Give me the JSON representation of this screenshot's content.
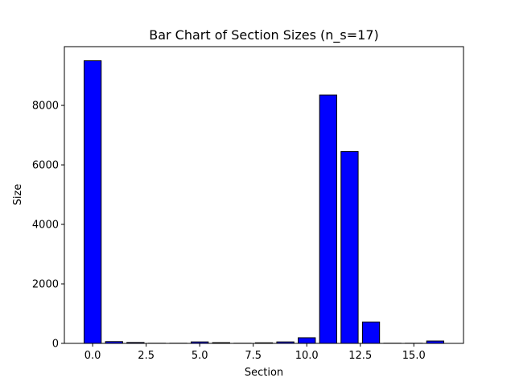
{
  "chart_data": {
    "type": "bar",
    "title": "Bar Chart of Section Sizes (n_s=17)",
    "xlabel": "Section",
    "ylabel": "Size",
    "x": [
      0,
      1,
      2,
      3,
      4,
      5,
      6,
      7,
      8,
      9,
      10,
      11,
      12,
      13,
      14,
      15,
      16
    ],
    "values": [
      9500,
      60,
      30,
      5,
      5,
      50,
      25,
      5,
      20,
      50,
      190,
      8350,
      6450,
      720,
      5,
      5,
      80
    ],
    "xlim": [
      -1.32,
      17.32
    ],
    "ylim": [
      0,
      9975
    ],
    "xticks": [
      0.0,
      2.5,
      5.0,
      7.5,
      10.0,
      12.5,
      15.0
    ],
    "xtick_labels": [
      "0.0",
      "2.5",
      "5.0",
      "7.5",
      "10.0",
      "12.5",
      "15.0"
    ],
    "yticks": [
      0,
      2000,
      4000,
      6000,
      8000
    ],
    "ytick_labels": [
      "0",
      "2000",
      "4000",
      "6000",
      "8000"
    ],
    "bar_color": "#0000ff",
    "edge_color": "#000000",
    "grid": false,
    "legend": "none"
  }
}
